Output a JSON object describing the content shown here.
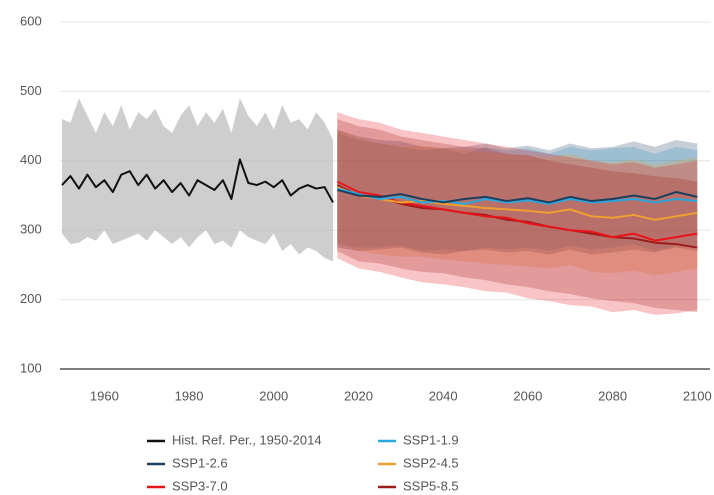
{
  "chart_data": {
    "type": "line",
    "grid": true,
    "legend": "bottom",
    "xlim": [
      1950,
      2103
    ],
    "ylim": [
      100,
      600
    ],
    "xticks": [
      1960,
      1980,
      2000,
      2020,
      2040,
      2060,
      2080,
      2100
    ],
    "yticks": [
      100,
      200,
      300,
      400,
      500,
      600
    ],
    "series": [
      {
        "name": "Hist. Ref. Per., 1950-2014",
        "color": "#111111",
        "band_color": "#bdbdbd",
        "x": [
          1950,
          1952,
          1954,
          1956,
          1958,
          1960,
          1962,
          1964,
          1966,
          1968,
          1970,
          1972,
          1974,
          1976,
          1978,
          1980,
          1982,
          1984,
          1986,
          1988,
          1990,
          1992,
          1994,
          1996,
          1998,
          2000,
          2002,
          2004,
          2006,
          2008,
          2010,
          2012,
          2014
        ],
        "values": [
          365,
          378,
          360,
          380,
          362,
          372,
          355,
          380,
          385,
          365,
          380,
          360,
          372,
          355,
          368,
          350,
          372,
          365,
          358,
          372,
          345,
          402,
          368,
          365,
          370,
          362,
          372,
          350,
          360,
          365,
          360,
          362,
          340
        ],
        "lower": [
          295,
          280,
          282,
          290,
          285,
          300,
          280,
          285,
          290,
          295,
          285,
          300,
          290,
          280,
          290,
          275,
          290,
          300,
          280,
          285,
          275,
          300,
          290,
          285,
          280,
          295,
          270,
          280,
          265,
          275,
          270,
          260,
          255
        ],
        "upper": [
          460,
          455,
          490,
          465,
          440,
          470,
          450,
          480,
          445,
          470,
          460,
          475,
          450,
          440,
          465,
          480,
          450,
          470,
          455,
          475,
          440,
          490,
          465,
          450,
          470,
          445,
          480,
          455,
          460,
          445,
          470,
          455,
          430
        ]
      },
      {
        "name": "SSP1-1.9",
        "color": "#2aa7df",
        "x": [
          2015,
          2020,
          2025,
          2030,
          2035,
          2040,
          2045,
          2050,
          2055,
          2060,
          2065,
          2070,
          2075,
          2080,
          2085,
          2090,
          2095,
          2100
        ],
        "values": [
          360,
          352,
          345,
          348,
          340,
          342,
          338,
          345,
          340,
          343,
          338,
          345,
          340,
          342,
          345,
          340,
          345,
          342
        ],
        "lower": [
          280,
          275,
          275,
          278,
          270,
          272,
          270,
          275,
          272,
          275,
          270,
          278,
          272,
          275,
          280,
          270,
          278,
          275
        ],
        "upper": [
          440,
          430,
          425,
          420,
          415,
          418,
          410,
          420,
          415,
          418,
          410,
          420,
          415,
          418,
          420,
          410,
          420,
          415
        ]
      },
      {
        "name": "SSP1-2.6",
        "color": "#1c3f5f",
        "x": [
          2015,
          2020,
          2025,
          2030,
          2035,
          2040,
          2045,
          2050,
          2055,
          2060,
          2065,
          2070,
          2075,
          2080,
          2085,
          2090,
          2095,
          2100
        ],
        "values": [
          358,
          350,
          348,
          352,
          345,
          340,
          345,
          348,
          342,
          346,
          340,
          348,
          342,
          345,
          350,
          345,
          355,
          348
        ],
        "lower": [
          275,
          270,
          272,
          275,
          268,
          265,
          270,
          272,
          268,
          270,
          265,
          272,
          265,
          268,
          272,
          268,
          275,
          270
        ],
        "upper": [
          445,
          435,
          430,
          428,
          420,
          418,
          420,
          425,
          418,
          422,
          415,
          425,
          418,
          420,
          428,
          420,
          430,
          425
        ]
      },
      {
        "name": "SSP2-4.5",
        "color": "#f0a030",
        "x": [
          2015,
          2020,
          2025,
          2030,
          2035,
          2040,
          2045,
          2050,
          2055,
          2060,
          2065,
          2070,
          2075,
          2080,
          2085,
          2090,
          2095,
          2100
        ],
        "values": [
          362,
          350,
          345,
          340,
          342,
          338,
          335,
          332,
          330,
          328,
          325,
          330,
          320,
          318,
          322,
          315,
          320,
          325
        ],
        "lower": [
          280,
          270,
          265,
          262,
          262,
          258,
          255,
          252,
          250,
          248,
          245,
          250,
          240,
          238,
          242,
          235,
          240,
          245
        ],
        "upper": [
          445,
          432,
          425,
          420,
          422,
          418,
          415,
          412,
          410,
          408,
          405,
          410,
          400,
          398,
          402,
          395,
          400,
          405
        ]
      },
      {
        "name": "SSP3-7.0",
        "color": "#e8141a",
        "x": [
          2015,
          2020,
          2025,
          2030,
          2035,
          2040,
          2045,
          2050,
          2055,
          2060,
          2065,
          2070,
          2075,
          2080,
          2085,
          2090,
          2095,
          2100
        ],
        "values": [
          370,
          355,
          350,
          340,
          335,
          330,
          325,
          320,
          318,
          310,
          305,
          300,
          298,
          290,
          295,
          285,
          290,
          295
        ],
        "lower": [
          260,
          245,
          240,
          232,
          225,
          222,
          218,
          212,
          210,
          202,
          198,
          192,
          190,
          182,
          185,
          178,
          180,
          185
        ],
        "upper": [
          470,
          460,
          455,
          445,
          440,
          435,
          430,
          425,
          420,
          415,
          410,
          405,
          400,
          395,
          398,
          390,
          395,
          400
        ]
      },
      {
        "name": "SSP5-8.5",
        "color": "#9e1b1b",
        "x": [
          2015,
          2020,
          2025,
          2030,
          2035,
          2040,
          2045,
          2050,
          2055,
          2060,
          2065,
          2070,
          2075,
          2080,
          2085,
          2090,
          2095,
          2100
        ],
        "values": [
          365,
          350,
          348,
          338,
          332,
          330,
          325,
          322,
          315,
          312,
          305,
          300,
          295,
          290,
          288,
          282,
          280,
          275
        ],
        "lower": [
          270,
          255,
          252,
          245,
          240,
          238,
          232,
          228,
          222,
          218,
          212,
          208,
          202,
          198,
          195,
          188,
          185,
          182
        ],
        "upper": [
          460,
          450,
          445,
          435,
          430,
          425,
          420,
          418,
          410,
          408,
          400,
          395,
          390,
          385,
          382,
          378,
          375,
          370
        ]
      }
    ]
  }
}
